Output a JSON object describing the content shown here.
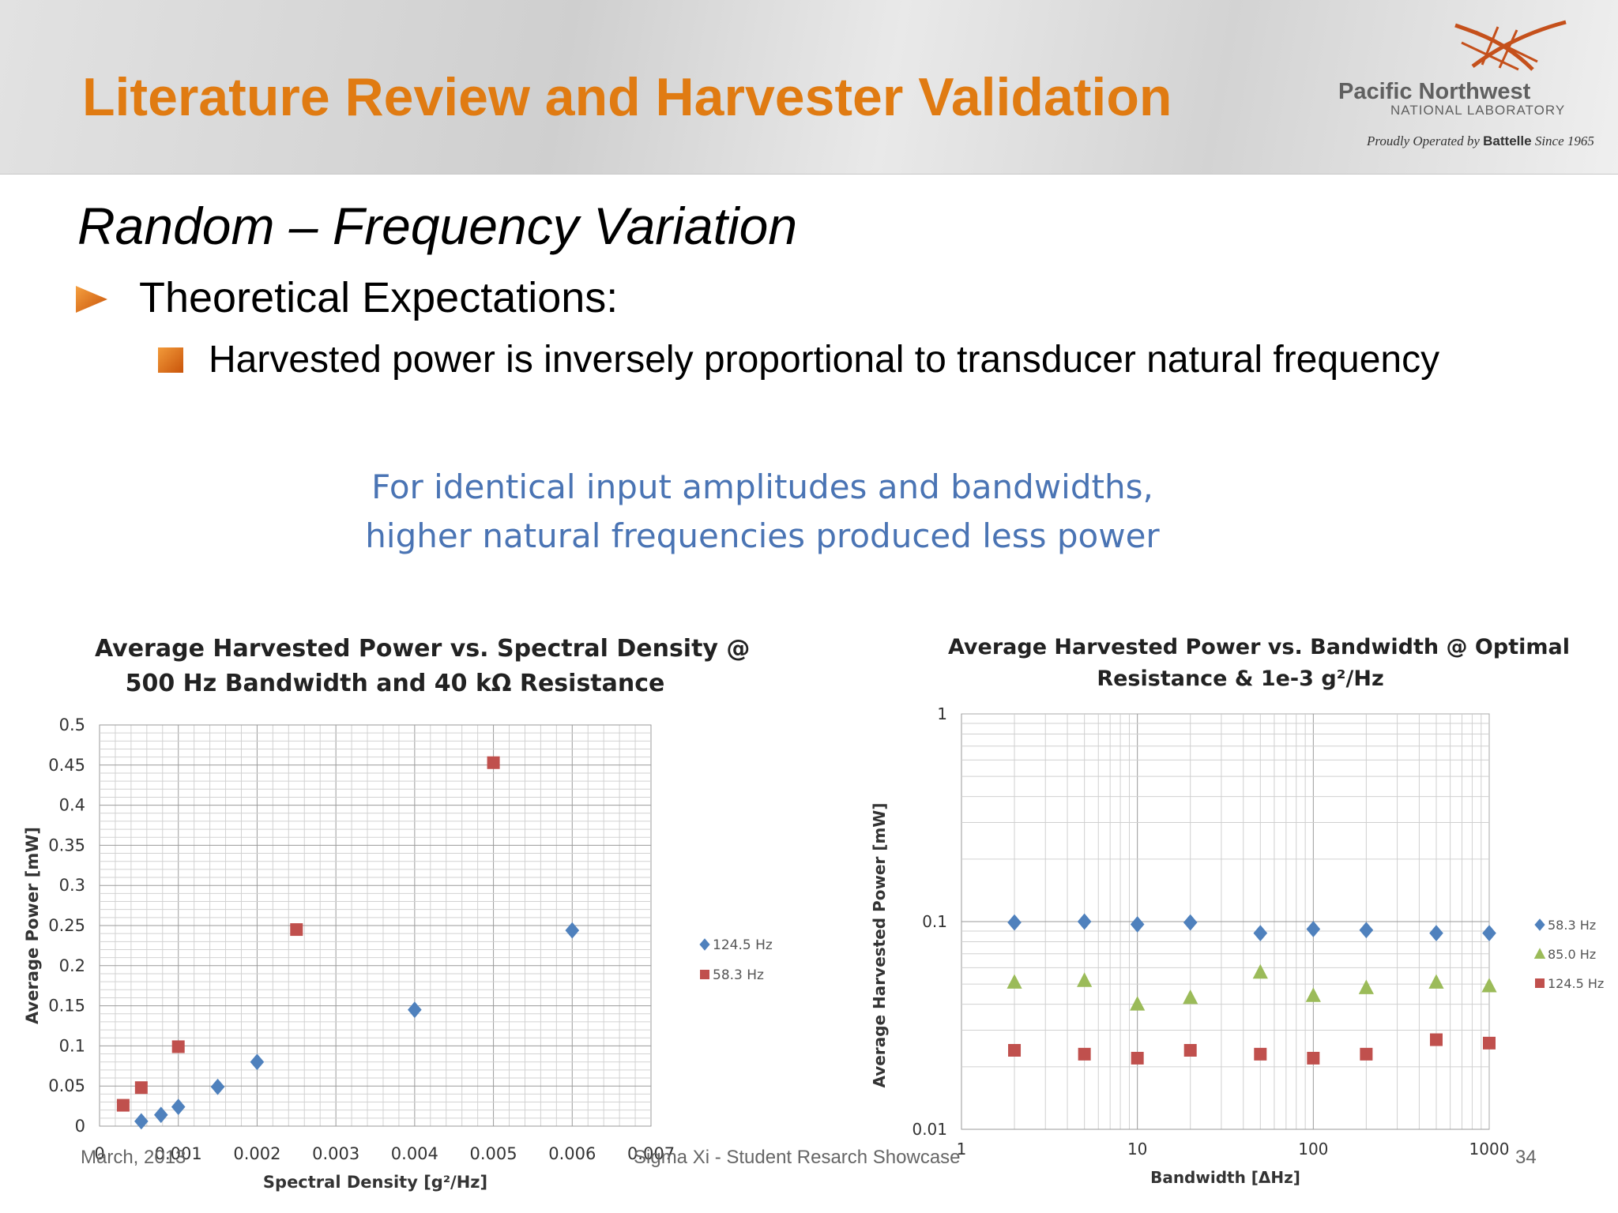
{
  "header": {
    "title": "Literature Review and Harvester Validation",
    "logo": {
      "name": "Pacific Northwest",
      "sub": "NATIONAL LABORATORY",
      "tag_prefix": "Proudly Operated by",
      "tag_brand": "Battelle",
      "tag_suffix": "Since 1965"
    }
  },
  "content": {
    "section_title": "Random – Frequency Variation",
    "bullet": "Theoretical Expectations:",
    "sub_bullet": "Harvested power is inversely proportional to transducer natural frequency",
    "note_line1": "For identical input amplitudes and bandwidths,",
    "note_line2": "higher natural frequencies produced less power"
  },
  "footer": {
    "date": "March, 2013",
    "event": "Sigma Xi - Student Resarch Showcase",
    "page": "34"
  },
  "colors": {
    "title_orange": "#e07b12",
    "note_blue": "#4a74b4",
    "series_blue": "#4f81bd",
    "series_red": "#c0504d",
    "series_green": "#9bbb59"
  },
  "chart_data": [
    {
      "type": "scatter",
      "title_line1": "Average Harvested Power vs. Spectral Density @",
      "title_line2": "500 Hz Bandwidth and 40 kΩ Resistance",
      "xlabel": "Spectral Density [g²/Hz]",
      "ylabel": "Average Power [mW]",
      "xlim": [
        0,
        0.007
      ],
      "ylim": [
        0,
        0.5
      ],
      "xticks": [
        "0",
        "0.001",
        "0.002",
        "0.003",
        "0.004",
        "0.005",
        "0.006",
        "0.007"
      ],
      "yticks": [
        "0",
        "0.05",
        "0.1",
        "0.15",
        "0.2",
        "0.25",
        "0.3",
        "0.35",
        "0.4",
        "0.45",
        "0.5"
      ],
      "grid": true,
      "legend_position": "right",
      "series": [
        {
          "name": "124.5 Hz",
          "marker": "diamond",
          "color": "#4f81bd",
          "points": [
            [
              0.00053,
              0.006
            ],
            [
              0.00078,
              0.014
            ],
            [
              0.001,
              0.024
            ],
            [
              0.0015,
              0.049
            ],
            [
              0.002,
              0.08
            ],
            [
              0.004,
              0.145
            ],
            [
              0.006,
              0.244
            ]
          ]
        },
        {
          "name": "58.3 Hz",
          "marker": "square",
          "color": "#c0504d",
          "points": [
            [
              0.0003,
              0.026
            ],
            [
              0.00053,
              0.048
            ],
            [
              0.001,
              0.099
            ],
            [
              0.0025,
              0.245
            ],
            [
              0.005,
              0.453
            ]
          ]
        }
      ]
    },
    {
      "type": "scatter",
      "title_line1": "Average Harvested Power vs. Bandwidth @ Optimal",
      "title_line2": "Resistance & 1e-3 g²/Hz",
      "xlabel": "Bandwidth [ΔHz]",
      "ylabel": "Average Harvested Power [mW]",
      "xscale": "log",
      "yscale": "log",
      "xlim": [
        1,
        1000
      ],
      "ylim": [
        0.01,
        1
      ],
      "xticks": [
        "1",
        "10",
        "100",
        "1000"
      ],
      "yticks": [
        "0.01",
        "0.1",
        "1"
      ],
      "grid": true,
      "legend_position": "right",
      "series": [
        {
          "name": "58.3 Hz",
          "marker": "diamond",
          "color": "#4f81bd",
          "points": [
            [
              2,
              0.099
            ],
            [
              5,
              0.1
            ],
            [
              10,
              0.097
            ],
            [
              20,
              0.099
            ],
            [
              50,
              0.088
            ],
            [
              100,
              0.092
            ],
            [
              200,
              0.091
            ],
            [
              500,
              0.088
            ],
            [
              1000,
              0.088
            ]
          ]
        },
        {
          "name": "85.0 Hz",
          "marker": "triangle",
          "color": "#9bbb59",
          "points": [
            [
              2,
              0.051
            ],
            [
              5,
              0.052
            ],
            [
              10,
              0.04
            ],
            [
              20,
              0.043
            ],
            [
              50,
              0.057
            ],
            [
              100,
              0.044
            ],
            [
              200,
              0.048
            ],
            [
              500,
              0.051
            ],
            [
              1000,
              0.049
            ]
          ]
        },
        {
          "name": "124.5 Hz",
          "marker": "square",
          "color": "#c0504d",
          "points": [
            [
              2,
              0.024
            ],
            [
              5,
              0.023
            ],
            [
              10,
              0.022
            ],
            [
              20,
              0.024
            ],
            [
              50,
              0.023
            ],
            [
              100,
              0.022
            ],
            [
              200,
              0.023
            ],
            [
              500,
              0.027
            ],
            [
              1000,
              0.026
            ]
          ]
        }
      ]
    }
  ]
}
